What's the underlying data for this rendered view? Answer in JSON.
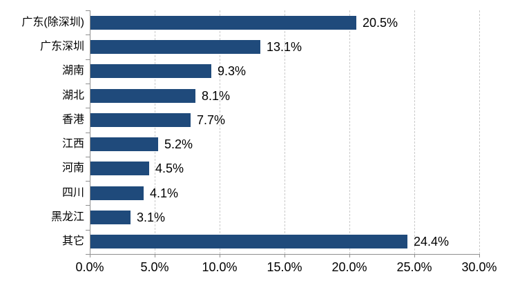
{
  "chart_data": {
    "type": "bar",
    "orientation": "horizontal",
    "title": "",
    "xlabel": "",
    "ylabel": "",
    "legend": "none",
    "grid": "vertical-dashed",
    "categories": [
      "广东(除深圳)",
      "广东深圳",
      "湖南",
      "湖北",
      "香港",
      "江西",
      "河南",
      "四川",
      "黑龙江",
      "其它"
    ],
    "values": [
      20.5,
      13.1,
      9.3,
      8.1,
      7.7,
      5.2,
      4.5,
      4.1,
      3.1,
      24.4
    ],
    "value_labels": [
      "20.5%",
      "13.1%",
      "9.3%",
      "8.1%",
      "7.7%",
      "5.2%",
      "4.5%",
      "4.1%",
      "3.1%",
      "24.4%"
    ],
    "x_ticks": [
      "0.0%",
      "5.0%",
      "10.0%",
      "15.0%",
      "20.0%",
      "25.0%",
      "30.0%"
    ],
    "x_tick_values": [
      0,
      5,
      10,
      15,
      20,
      25,
      30
    ],
    "xlim": [
      0,
      30
    ],
    "bar_color": "#1f4a7b",
    "gridline_color": "#c9c9c9",
    "axis_color": "#8e8e8e",
    "text_color": "#000000"
  }
}
